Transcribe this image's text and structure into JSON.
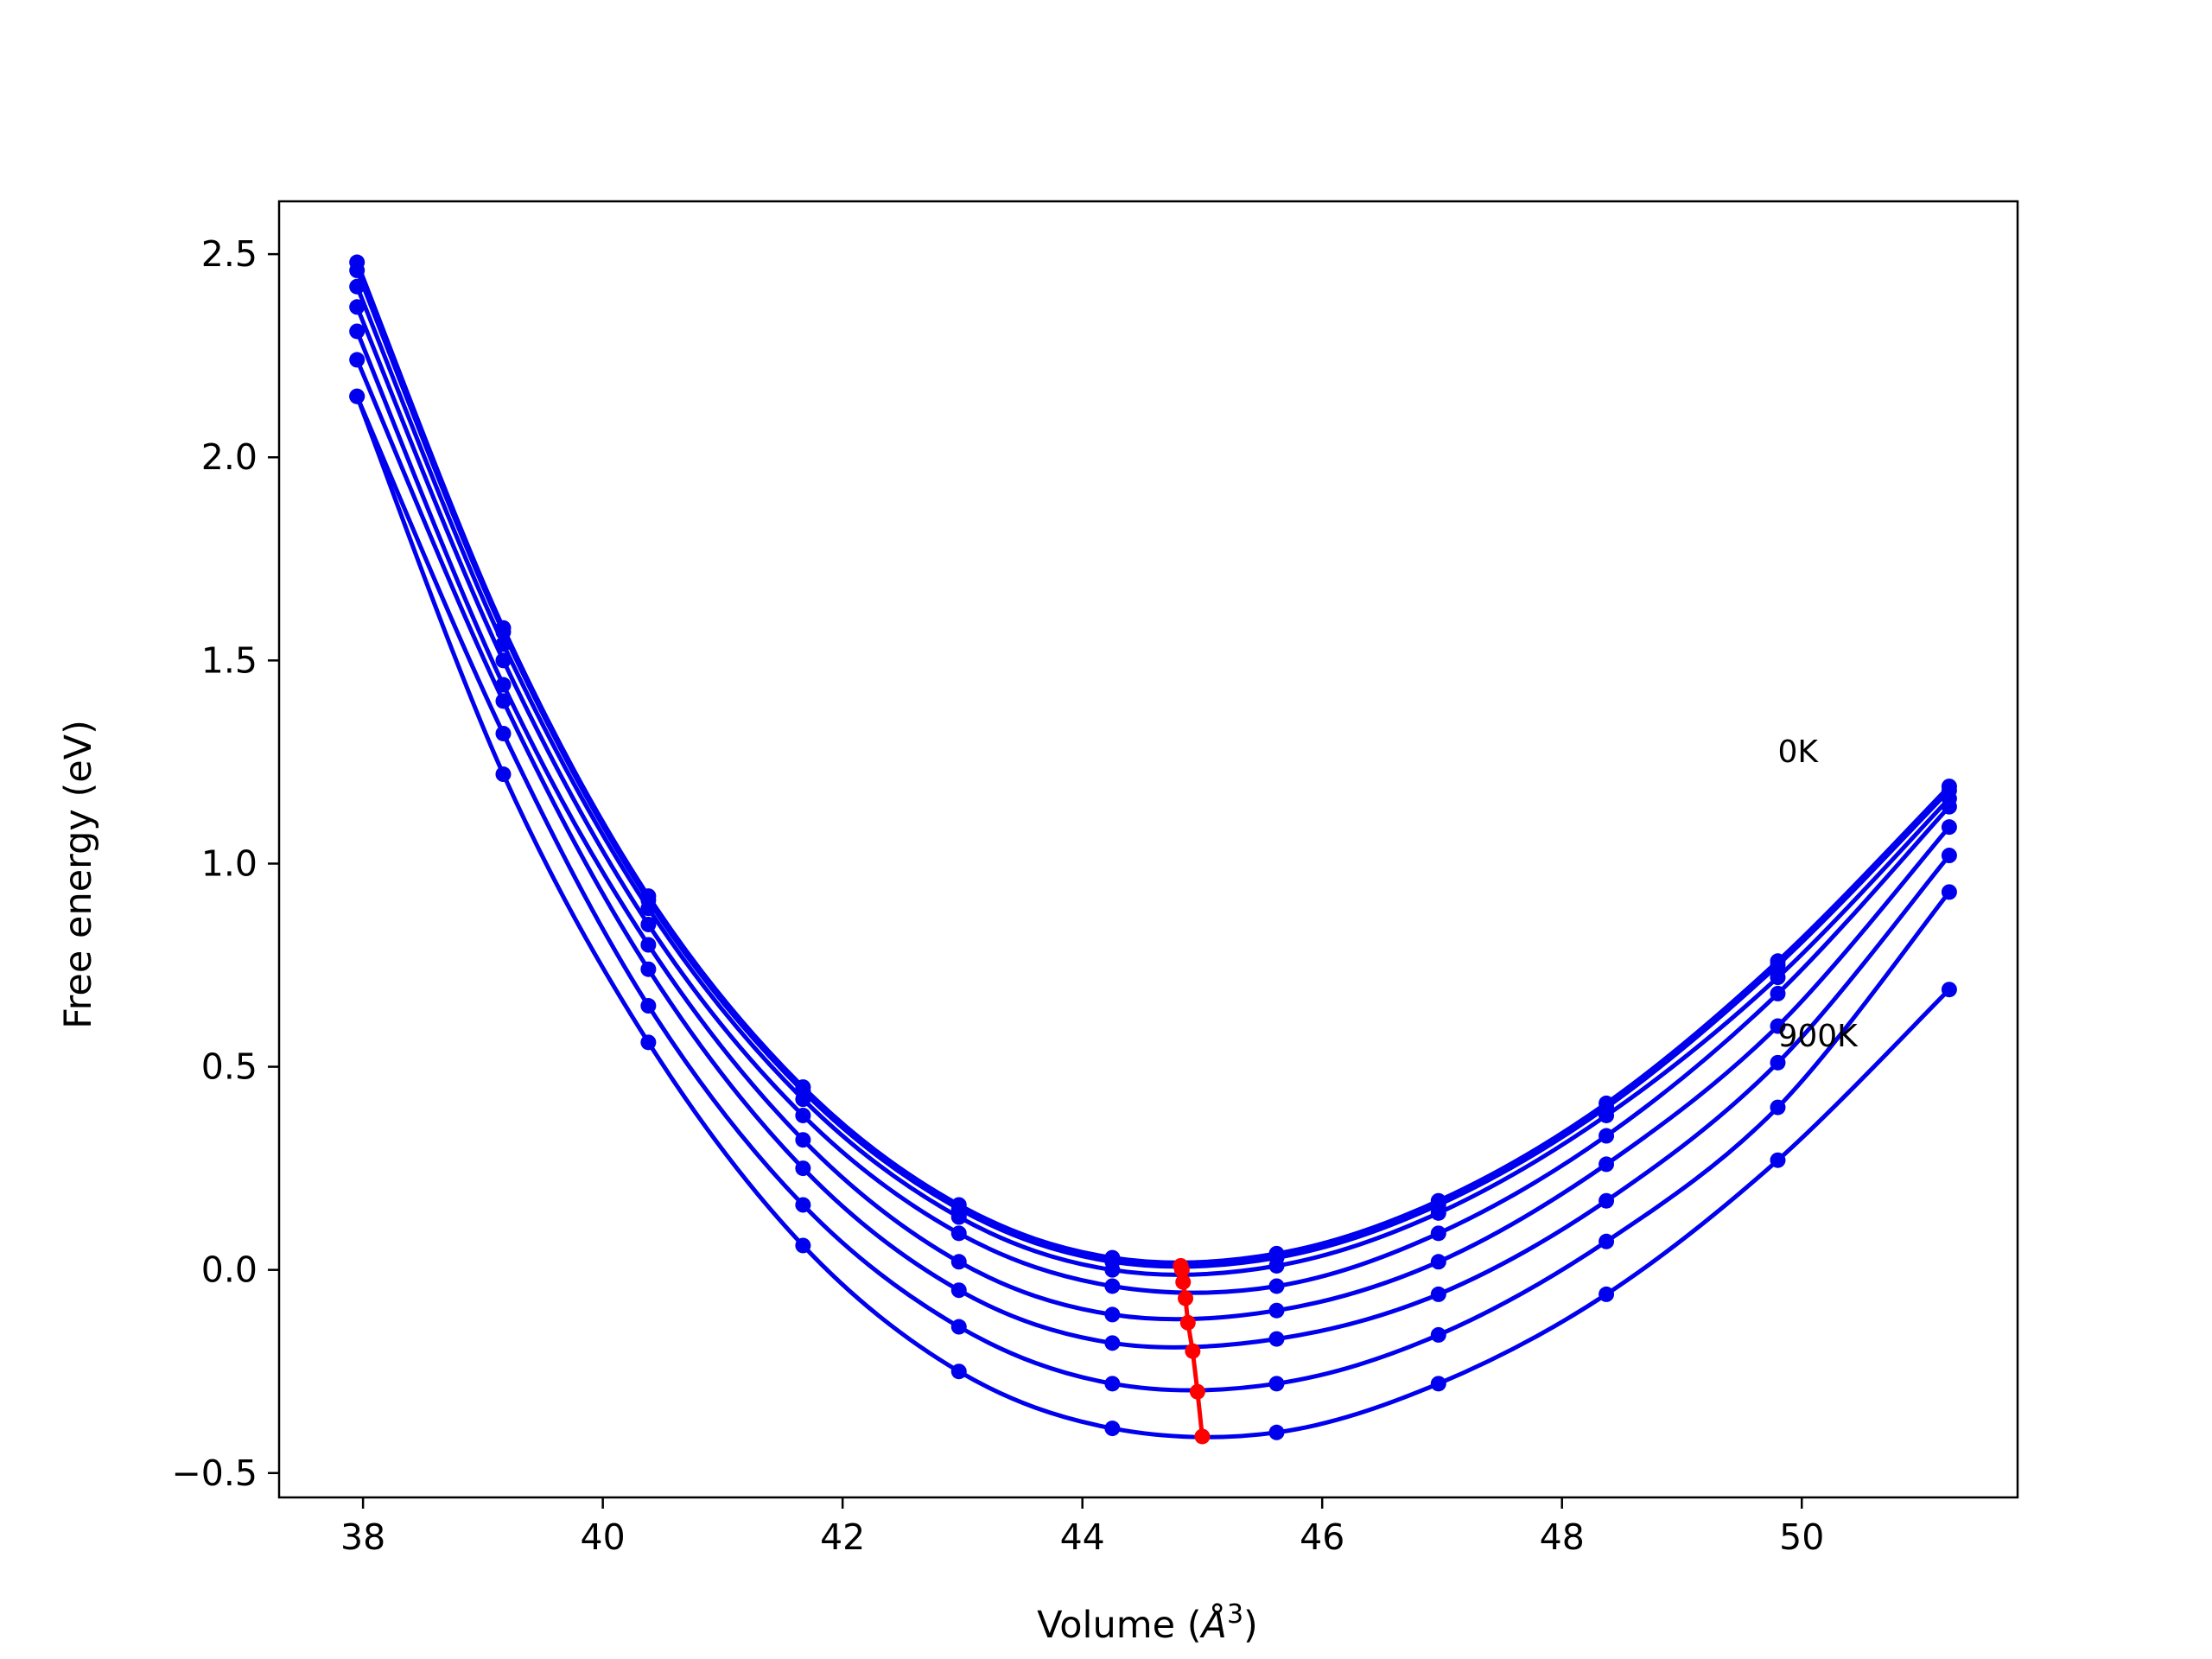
{
  "chart_data": {
    "type": "line",
    "xlabel": "Volume (",
    "xlabel_unit_symbol": "Å",
    "xlabel_unit_power": "3",
    "xlabel_close": ")",
    "ylabel": "Free energy (eV)",
    "xlim": [
      37.3,
      51.8
    ],
    "ylim": [
      -0.56,
      2.63
    ],
    "x_ticks": [
      38,
      40,
      42,
      44,
      46,
      48,
      50
    ],
    "y_ticks": [
      -0.5,
      0.0,
      0.5,
      1.0,
      1.5,
      2.0,
      2.5
    ],
    "x_tick_labels": [
      "38",
      "40",
      "42",
      "44",
      "46",
      "48",
      "50"
    ],
    "y_tick_labels": [
      "−0.5",
      "0.0",
      "0.5",
      "1.0",
      "1.5",
      "2.0",
      "2.5"
    ],
    "grid": false,
    "annotations": [
      {
        "text": "0K",
        "x": 49.8,
        "y": 1.25
      },
      {
        "text": "900K",
        "x": 49.8,
        "y": 0.55
      }
    ],
    "volumes": [
      37.95,
      39.17,
      40.38,
      41.67,
      42.97,
      44.25,
      45.62,
      46.97,
      48.37,
      49.8,
      51.23
    ],
    "series": [
      {
        "color": "#0000ee",
        "values": [
          2.48,
          1.58,
          0.92,
          0.45,
          0.16,
          0.03,
          0.04,
          0.17,
          0.41,
          0.76,
          1.19
        ]
      },
      {
        "color": "#0000ee",
        "values": [
          2.46,
          1.57,
          0.91,
          0.44,
          0.15,
          0.02,
          0.03,
          0.16,
          0.4,
          0.75,
          1.18
        ]
      },
      {
        "color": "#0000ee",
        "values": [
          2.42,
          1.54,
          0.89,
          0.42,
          0.13,
          0.0,
          0.01,
          0.14,
          0.38,
          0.72,
          1.16
        ]
      },
      {
        "color": "#0000ee",
        "values": [
          2.37,
          1.5,
          0.85,
          0.38,
          0.09,
          -0.04,
          -0.04,
          0.09,
          0.33,
          0.68,
          1.14
        ]
      },
      {
        "color": "#0000ee",
        "values": [
          2.31,
          1.44,
          0.8,
          0.32,
          0.02,
          -0.11,
          -0.1,
          0.02,
          0.26,
          0.6,
          1.09
        ]
      },
      {
        "color": "#0000ee",
        "values": [
          2.24,
          1.4,
          0.74,
          0.25,
          -0.05,
          -0.18,
          -0.17,
          -0.06,
          0.17,
          0.51,
          1.02
        ]
      },
      {
        "color": "#0000ee",
        "values": [
          2.15,
          1.32,
          0.65,
          0.16,
          -0.14,
          -0.28,
          -0.28,
          -0.16,
          0.07,
          0.4,
          0.93
        ]
      },
      {
        "color": "#0000ee",
        "values": [
          2.15,
          1.22,
          0.56,
          0.06,
          -0.25,
          -0.39,
          -0.4,
          -0.28,
          -0.06,
          0.27,
          0.69
        ]
      }
    ],
    "minima": {
      "color": "#ff0000",
      "x": [
        44.82,
        44.83,
        44.84,
        44.86,
        44.88,
        44.92,
        44.96,
        45.0
      ],
      "y": [
        0.01,
        0.0,
        -0.03,
        -0.07,
        -0.13,
        -0.2,
        -0.3,
        -0.41
      ]
    }
  }
}
